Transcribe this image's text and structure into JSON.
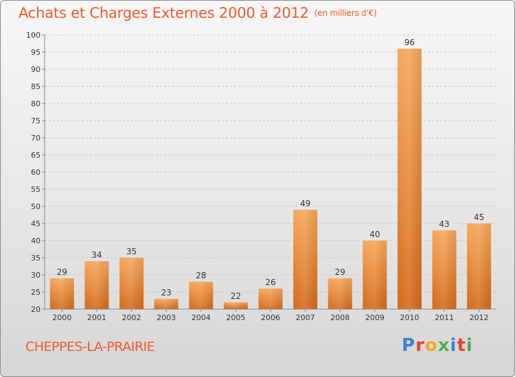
{
  "title": "Achats et Charges Externes 2000 à 2012",
  "unit": "(en milliers d'€)",
  "commune": "CHEPPES-LA-PRAIRIE",
  "logo": {
    "letters": [
      "P",
      "r",
      "o",
      "x",
      "i",
      "t",
      "i"
    ],
    "colors": [
      "#3a7fd5",
      "#e8432a",
      "#f5a623",
      "#4caf50",
      "#3a7fd5",
      "#e8432a",
      "#4caf50"
    ]
  },
  "colors": {
    "accent": "#ee5a2a",
    "bar_top": "#f6a75a",
    "bar_bottom": "#d56a1a"
  },
  "chart_data": {
    "type": "bar",
    "categories": [
      "2000",
      "2001",
      "2002",
      "2003",
      "2004",
      "2005",
      "2006",
      "2007",
      "2008",
      "2009",
      "2010",
      "2011",
      "2012"
    ],
    "values": [
      29,
      34,
      35,
      23,
      28,
      22,
      26,
      49,
      29,
      40,
      96,
      43,
      45
    ],
    "ylim": [
      20,
      100
    ],
    "yticks": [
      20,
      25,
      30,
      35,
      40,
      45,
      50,
      55,
      60,
      65,
      70,
      75,
      80,
      85,
      90,
      95,
      100
    ],
    "grid": "horizontal dashed",
    "xlabel": "",
    "ylabel": ""
  }
}
